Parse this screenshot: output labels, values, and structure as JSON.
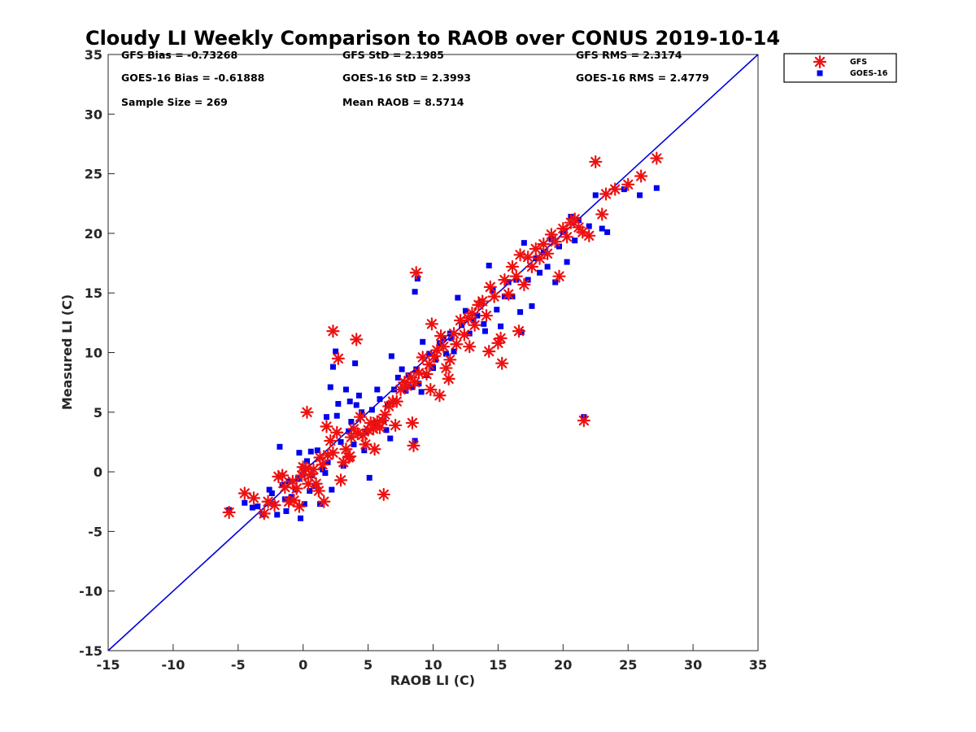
{
  "chart_data": {
    "type": "scatter",
    "title": "Cloudy LI Weekly Comparison to RAOB over CONUS 2019-10-14",
    "xlabel": "RAOB LI (C)",
    "ylabel": "Measured LI (C)",
    "xlim": [
      -15,
      35
    ],
    "ylim": [
      -15,
      35
    ],
    "xticks": [
      "-15",
      "-10",
      "-5",
      "0",
      "5",
      "10",
      "15",
      "20",
      "25",
      "30",
      "35"
    ],
    "yticks": [
      "-15",
      "-10",
      "-5",
      "0",
      "5",
      "10",
      "15",
      "20",
      "25",
      "30",
      "35"
    ],
    "grid": false,
    "legend_position": "outside top-right",
    "reference_line": {
      "from": [
        -15,
        -15
      ],
      "to": [
        35,
        35
      ],
      "color": "#0000dd"
    },
    "stats": [
      [
        "GFS Bias = -0.73268",
        "GFS StD = 2.1985",
        "GFS RMS = 2.3174"
      ],
      [
        "GOES-16 Bias = -0.61888",
        "GOES-16 StD = 2.3993",
        "GOES-16 RMS = 2.4779"
      ],
      [
        "Sample Size = 269",
        "Mean RAOB = 8.5714",
        ""
      ]
    ],
    "series": [
      {
        "name": "GFS",
        "marker": "asterisk",
        "color": "#ee1111",
        "points": [
          [
            -5.7,
            -3.4
          ],
          [
            -4.5,
            -1.8
          ],
          [
            -3.8,
            -2.2
          ],
          [
            -3,
            -3.5
          ],
          [
            -2.7,
            -2.5
          ],
          [
            -2.2,
            -2.8
          ],
          [
            -1.9,
            -0.4
          ],
          [
            -1.6,
            -0.3
          ],
          [
            -1.4,
            -1.3
          ],
          [
            -1.1,
            -2.5
          ],
          [
            -0.8,
            -0.8
          ],
          [
            -0.5,
            -1.4
          ],
          [
            -0.3,
            -2.9
          ],
          [
            -0.1,
            -0.3
          ],
          [
            0,
            0.4
          ],
          [
            0.2,
            0.3
          ],
          [
            0.4,
            -1
          ],
          [
            0.6,
            -0.2
          ],
          [
            0.8,
            0.2
          ],
          [
            1,
            -1
          ],
          [
            1.2,
            -1.6
          ],
          [
            1.3,
            1.2
          ],
          [
            1.5,
            0.6
          ],
          [
            1.6,
            -2.5
          ],
          [
            1.9,
            1.4
          ],
          [
            2.1,
            2.6
          ],
          [
            2.3,
            1.6
          ],
          [
            2.6,
            3.3
          ],
          [
            2.9,
            -0.7
          ],
          [
            3.1,
            0.8
          ],
          [
            3.3,
            1.9
          ],
          [
            3.5,
            1.2
          ],
          [
            3.7,
            2.9
          ],
          [
            3.9,
            3.6
          ],
          [
            4.2,
            3.2
          ],
          [
            4.4,
            4.6
          ],
          [
            4.6,
            3.1
          ],
          [
            4.8,
            2.3
          ],
          [
            5,
            3.5
          ],
          [
            5.2,
            4.1
          ],
          [
            5.4,
            3.6
          ],
          [
            5.7,
            4.2
          ],
          [
            5.9,
            3.7
          ],
          [
            6.1,
            4.3
          ],
          [
            6.3,
            4.8
          ],
          [
            6.6,
            5.5
          ],
          [
            6.9,
            5.9
          ],
          [
            7.2,
            5.9
          ],
          [
            7.5,
            6.9
          ],
          [
            7.8,
            7.5
          ],
          [
            8,
            7.2
          ],
          [
            8.3,
            7.9
          ],
          [
            8.6,
            7.5
          ],
          [
            8.9,
            8.3
          ],
          [
            9.2,
            9.6
          ],
          [
            9.5,
            8.2
          ],
          [
            9.7,
            9
          ],
          [
            9.9,
            12.4
          ],
          [
            10.1,
            9.7
          ],
          [
            10.3,
            10.2
          ],
          [
            10.6,
            11.4
          ],
          [
            10.8,
            10.5
          ],
          [
            11,
            8.7
          ],
          [
            11.3,
            9.4
          ],
          [
            11.6,
            11.6
          ],
          [
            11.8,
            10.7
          ],
          [
            12.1,
            12.7
          ],
          [
            12.4,
            11.5
          ],
          [
            12.7,
            12.9
          ],
          [
            13,
            13.3
          ],
          [
            13.2,
            12.3
          ],
          [
            13.5,
            14
          ],
          [
            13.8,
            14.3
          ],
          [
            14.1,
            13.1
          ],
          [
            14.4,
            15.5
          ],
          [
            14.7,
            14.7
          ],
          [
            15,
            10.8
          ],
          [
            15.2,
            11.2
          ],
          [
            15.5,
            16.1
          ],
          [
            15.8,
            14.9
          ],
          [
            16.1,
            17.2
          ],
          [
            16.4,
            16.4
          ],
          [
            16.7,
            18.2
          ],
          [
            17,
            15.7
          ],
          [
            17.3,
            18
          ],
          [
            17.6,
            17.2
          ],
          [
            17.9,
            18.7
          ],
          [
            18.2,
            17.9
          ],
          [
            18.5,
            19.1
          ],
          [
            18.8,
            18.3
          ],
          [
            19.1,
            19.9
          ],
          [
            19.4,
            19.3
          ],
          [
            19.7,
            16.4
          ],
          [
            20,
            20.4
          ],
          [
            20.3,
            19.7
          ],
          [
            20.6,
            20.9
          ],
          [
            20.9,
            21.2
          ],
          [
            21.2,
            20.5
          ],
          [
            21.5,
            20.1
          ],
          [
            22,
            19.8
          ],
          [
            22.5,
            26
          ],
          [
            23,
            21.6
          ],
          [
            23.3,
            23.3
          ],
          [
            24,
            23.7
          ],
          [
            25,
            24.1
          ],
          [
            26,
            24.8
          ],
          [
            27.2,
            26.3
          ],
          [
            21.6,
            4.3
          ],
          [
            8.7,
            16.7
          ],
          [
            8.5,
            2.2
          ],
          [
            8.4,
            4.1
          ],
          [
            6.2,
            -1.9
          ],
          [
            2.3,
            11.8
          ],
          [
            4.1,
            11.1
          ],
          [
            2.7,
            9.5
          ],
          [
            15.3,
            9.1
          ],
          [
            0.3,
            5
          ],
          [
            3.6,
            1.3
          ],
          [
            11.2,
            7.8
          ],
          [
            10.5,
            6.4
          ],
          [
            9.8,
            6.9
          ],
          [
            7.1,
            3.9
          ],
          [
            12.8,
            10.5
          ],
          [
            14.3,
            10.1
          ],
          [
            16.6,
            11.8
          ],
          [
            5.5,
            1.9
          ],
          [
            1.8,
            3.8
          ],
          [
            -0.7,
            -2.4
          ]
        ]
      },
      {
        "name": "GOES-16",
        "marker": "square",
        "color": "#0000ee",
        "points": [
          [
            -5.7,
            -3.2
          ],
          [
            -4.5,
            -2.6
          ],
          [
            -3.9,
            -3
          ],
          [
            -3.5,
            -2.9
          ],
          [
            -3.1,
            -3.6
          ],
          [
            -2.6,
            -1.5
          ],
          [
            -2.3,
            -2.7
          ],
          [
            -2,
            -3.6
          ],
          [
            -1.8,
            2.1
          ],
          [
            -1.6,
            -1.1
          ],
          [
            -1.4,
            -2.3
          ],
          [
            -1.1,
            -0.8
          ],
          [
            -0.9,
            -2.1
          ],
          [
            -0.6,
            -1.5
          ],
          [
            -0.4,
            -0.6
          ],
          [
            -0.2,
            -3.9
          ],
          [
            0,
            -0.2
          ],
          [
            0.1,
            -2.7
          ],
          [
            0.3,
            0.9
          ],
          [
            0.5,
            -1.6
          ],
          [
            0.7,
            -0.3
          ],
          [
            0.9,
            -1.2
          ],
          [
            1.1,
            1.8
          ],
          [
            1.3,
            -2.7
          ],
          [
            1.5,
            0.2
          ],
          [
            1.7,
            -0.1
          ],
          [
            1.9,
            0.8
          ],
          [
            2.1,
            7.1
          ],
          [
            2.3,
            8.8
          ],
          [
            2.5,
            10.1
          ],
          [
            2.7,
            5.7
          ],
          [
            2.9,
            2.5
          ],
          [
            3.1,
            0.5
          ],
          [
            3.3,
            6.9
          ],
          [
            3.5,
            3.4
          ],
          [
            3.7,
            4.2
          ],
          [
            3.9,
            2.3
          ],
          [
            4.1,
            5.6
          ],
          [
            4.3,
            6.4
          ],
          [
            4.5,
            5
          ],
          [
            4.7,
            1.8
          ],
          [
            4.9,
            3.4
          ],
          [
            5.1,
            -0.5
          ],
          [
            5.3,
            5.2
          ],
          [
            5.5,
            4.1
          ],
          [
            5.7,
            6.9
          ],
          [
            5.9,
            6.1
          ],
          [
            6.2,
            4.3
          ],
          [
            6.5,
            5.6
          ],
          [
            6.8,
            9.7
          ],
          [
            7,
            6.9
          ],
          [
            7.3,
            7.9
          ],
          [
            7.6,
            8.6
          ],
          [
            7.9,
            6.8
          ],
          [
            8.1,
            8.1
          ],
          [
            8.4,
            7.1
          ],
          [
            8.7,
            8.6
          ],
          [
            8.9,
            7.4
          ],
          [
            9.2,
            10.9
          ],
          [
            9.5,
            8.1
          ],
          [
            9.7,
            9.9
          ],
          [
            10,
            8.7
          ],
          [
            10.2,
            9.4
          ],
          [
            10.5,
            10.8
          ],
          [
            10.8,
            11.2
          ],
          [
            11,
            9.9
          ],
          [
            11.3,
            11.6
          ],
          [
            11.6,
            10.1
          ],
          [
            11.9,
            14.6
          ],
          [
            12.2,
            12.3
          ],
          [
            12.5,
            13.5
          ],
          [
            12.8,
            11.6
          ],
          [
            13.1,
            12.7
          ],
          [
            13.4,
            13.1
          ],
          [
            13.7,
            14.3
          ],
          [
            14,
            11.8
          ],
          [
            14.3,
            17.3
          ],
          [
            14.6,
            15.2
          ],
          [
            14.9,
            13.6
          ],
          [
            15.2,
            12.2
          ],
          [
            15.5,
            14.7
          ],
          [
            15.8,
            15.9
          ],
          [
            16.1,
            14.7
          ],
          [
            16.4,
            16.1
          ],
          [
            16.7,
            13.4
          ],
          [
            17,
            19.2
          ],
          [
            17.3,
            16.1
          ],
          [
            17.6,
            13.9
          ],
          [
            17.9,
            17.9
          ],
          [
            18.2,
            16.7
          ],
          [
            18.5,
            18.4
          ],
          [
            18.8,
            17.2
          ],
          [
            19.1,
            19.5
          ],
          [
            19.4,
            15.9
          ],
          [
            19.7,
            18.9
          ],
          [
            20,
            20.1
          ],
          [
            20.3,
            17.6
          ],
          [
            20.6,
            21.4
          ],
          [
            20.9,
            19.4
          ],
          [
            21.2,
            21.1
          ],
          [
            21.6,
            4.6
          ],
          [
            22,
            20.6
          ],
          [
            22.5,
            23.2
          ],
          [
            23,
            20.4
          ],
          [
            23.4,
            20.1
          ],
          [
            24.7,
            23.7
          ],
          [
            25.9,
            23.2
          ],
          [
            27.2,
            23.8
          ],
          [
            8.6,
            15.1
          ],
          [
            8.6,
            2.6
          ],
          [
            8.8,
            16.2
          ],
          [
            6.4,
            3.5
          ],
          [
            -2.4,
            -1.8
          ],
          [
            -0.3,
            1.6
          ],
          [
            1.8,
            4.6
          ],
          [
            4,
            9.1
          ],
          [
            2.6,
            4.7
          ],
          [
            3.6,
            5.9
          ],
          [
            11.4,
            11.2
          ],
          [
            13.9,
            12.4
          ],
          [
            16.8,
            11.7
          ],
          [
            9.1,
            6.7
          ],
          [
            -1.3,
            -3.3
          ],
          [
            0.6,
            1.7
          ],
          [
            2.2,
            -1.5
          ],
          [
            6.7,
            2.8
          ]
        ]
      }
    ]
  }
}
